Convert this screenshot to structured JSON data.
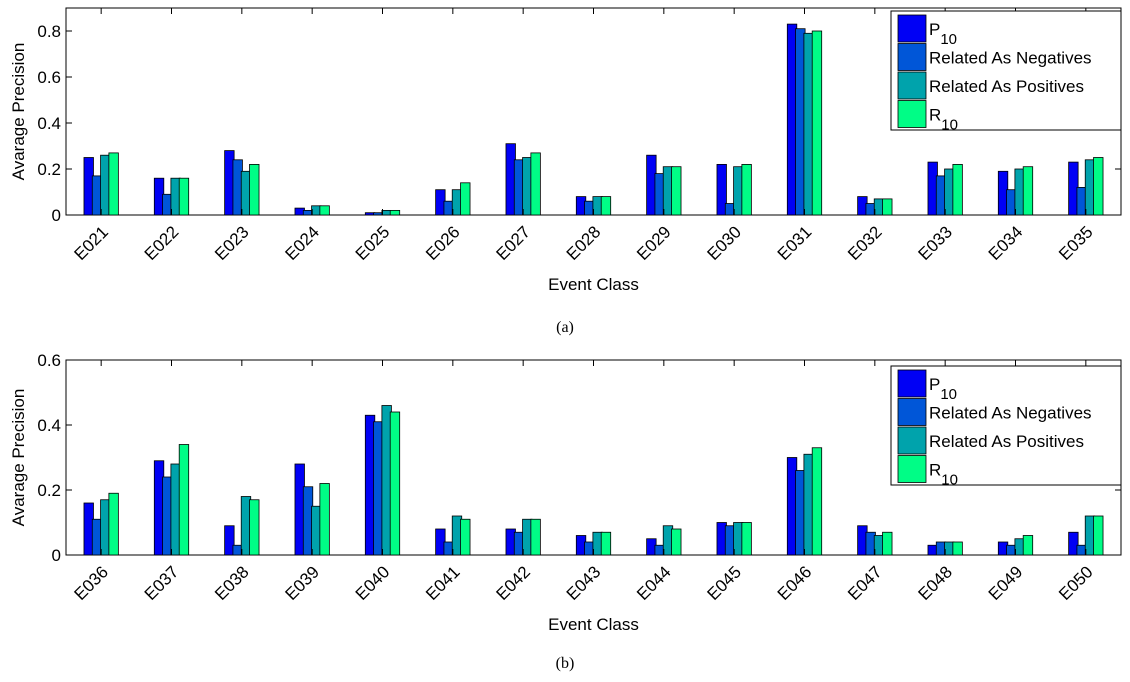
{
  "colors": {
    "series": [
      "#0000f5",
      "#0056d8",
      "#00a3ac",
      "#00fd86"
    ],
    "axis": "#000000",
    "background": "#ffffff"
  },
  "chart_data": [
    {
      "type": "bar",
      "caption": "(a)",
      "xlabel": "Event Class",
      "ylabel": "Avarage Precision",
      "ylim": [
        0,
        0.9
      ],
      "yticks": [
        0,
        0.2,
        0.4,
        0.6,
        0.8
      ],
      "ytick_labels": [
        "0",
        "0.2",
        "0.4",
        "0.6",
        "0.8"
      ],
      "grid": false,
      "legend_position": "top-right",
      "categories": [
        "E021",
        "E022",
        "E023",
        "E024",
        "E025",
        "E026",
        "E027",
        "E028",
        "E029",
        "E030",
        "E031",
        "E032",
        "E033",
        "E034",
        "E035"
      ],
      "series": [
        {
          "name": "P",
          "name_sub": "10",
          "values": [
            0.25,
            0.16,
            0.28,
            0.03,
            0.01,
            0.11,
            0.31,
            0.08,
            0.26,
            0.22,
            0.83,
            0.08,
            0.23,
            0.19,
            0.23
          ]
        },
        {
          "name": "Related As Negatives",
          "name_sub": "",
          "values": [
            0.17,
            0.09,
            0.24,
            0.02,
            0.01,
            0.06,
            0.24,
            0.06,
            0.18,
            0.05,
            0.81,
            0.05,
            0.17,
            0.11,
            0.12
          ]
        },
        {
          "name": "Related As Positives",
          "name_sub": "",
          "values": [
            0.26,
            0.16,
            0.19,
            0.04,
            0.02,
            0.11,
            0.25,
            0.08,
            0.21,
            0.21,
            0.79,
            0.07,
            0.2,
            0.2,
            0.24
          ]
        },
        {
          "name": "R",
          "name_sub": "10",
          "values": [
            0.27,
            0.16,
            0.22,
            0.04,
            0.02,
            0.14,
            0.27,
            0.08,
            0.21,
            0.22,
            0.8,
            0.07,
            0.22,
            0.21,
            0.25
          ]
        }
      ]
    },
    {
      "type": "bar",
      "caption": "(b)",
      "xlabel": "Event Class",
      "ylabel": "Avarage Precision",
      "ylim": [
        0,
        0.6
      ],
      "yticks": [
        0,
        0.2,
        0.4,
        0.6
      ],
      "ytick_labels": [
        "0",
        "0.2",
        "0.4",
        "0.6"
      ],
      "grid": false,
      "legend_position": "top-right",
      "categories": [
        "E036",
        "E037",
        "E038",
        "E039",
        "E040",
        "E041",
        "E042",
        "E043",
        "E044",
        "E045",
        "E046",
        "E047",
        "E048",
        "E049",
        "E050"
      ],
      "series": [
        {
          "name": "P",
          "name_sub": "10",
          "values": [
            0.16,
            0.29,
            0.09,
            0.28,
            0.43,
            0.08,
            0.08,
            0.06,
            0.05,
            0.1,
            0.3,
            0.09,
            0.03,
            0.04,
            0.07
          ]
        },
        {
          "name": "Related As Negatives",
          "name_sub": "",
          "values": [
            0.11,
            0.24,
            0.03,
            0.21,
            0.41,
            0.04,
            0.07,
            0.04,
            0.03,
            0.09,
            0.26,
            0.07,
            0.04,
            0.03,
            0.03
          ]
        },
        {
          "name": "Related As Positives",
          "name_sub": "",
          "values": [
            0.17,
            0.28,
            0.18,
            0.15,
            0.46,
            0.12,
            0.11,
            0.07,
            0.09,
            0.1,
            0.31,
            0.06,
            0.04,
            0.05,
            0.12
          ]
        },
        {
          "name": "R",
          "name_sub": "10",
          "values": [
            0.19,
            0.34,
            0.17,
            0.22,
            0.44,
            0.11,
            0.11,
            0.07,
            0.08,
            0.1,
            0.33,
            0.07,
            0.04,
            0.06,
            0.12
          ]
        }
      ]
    }
  ]
}
